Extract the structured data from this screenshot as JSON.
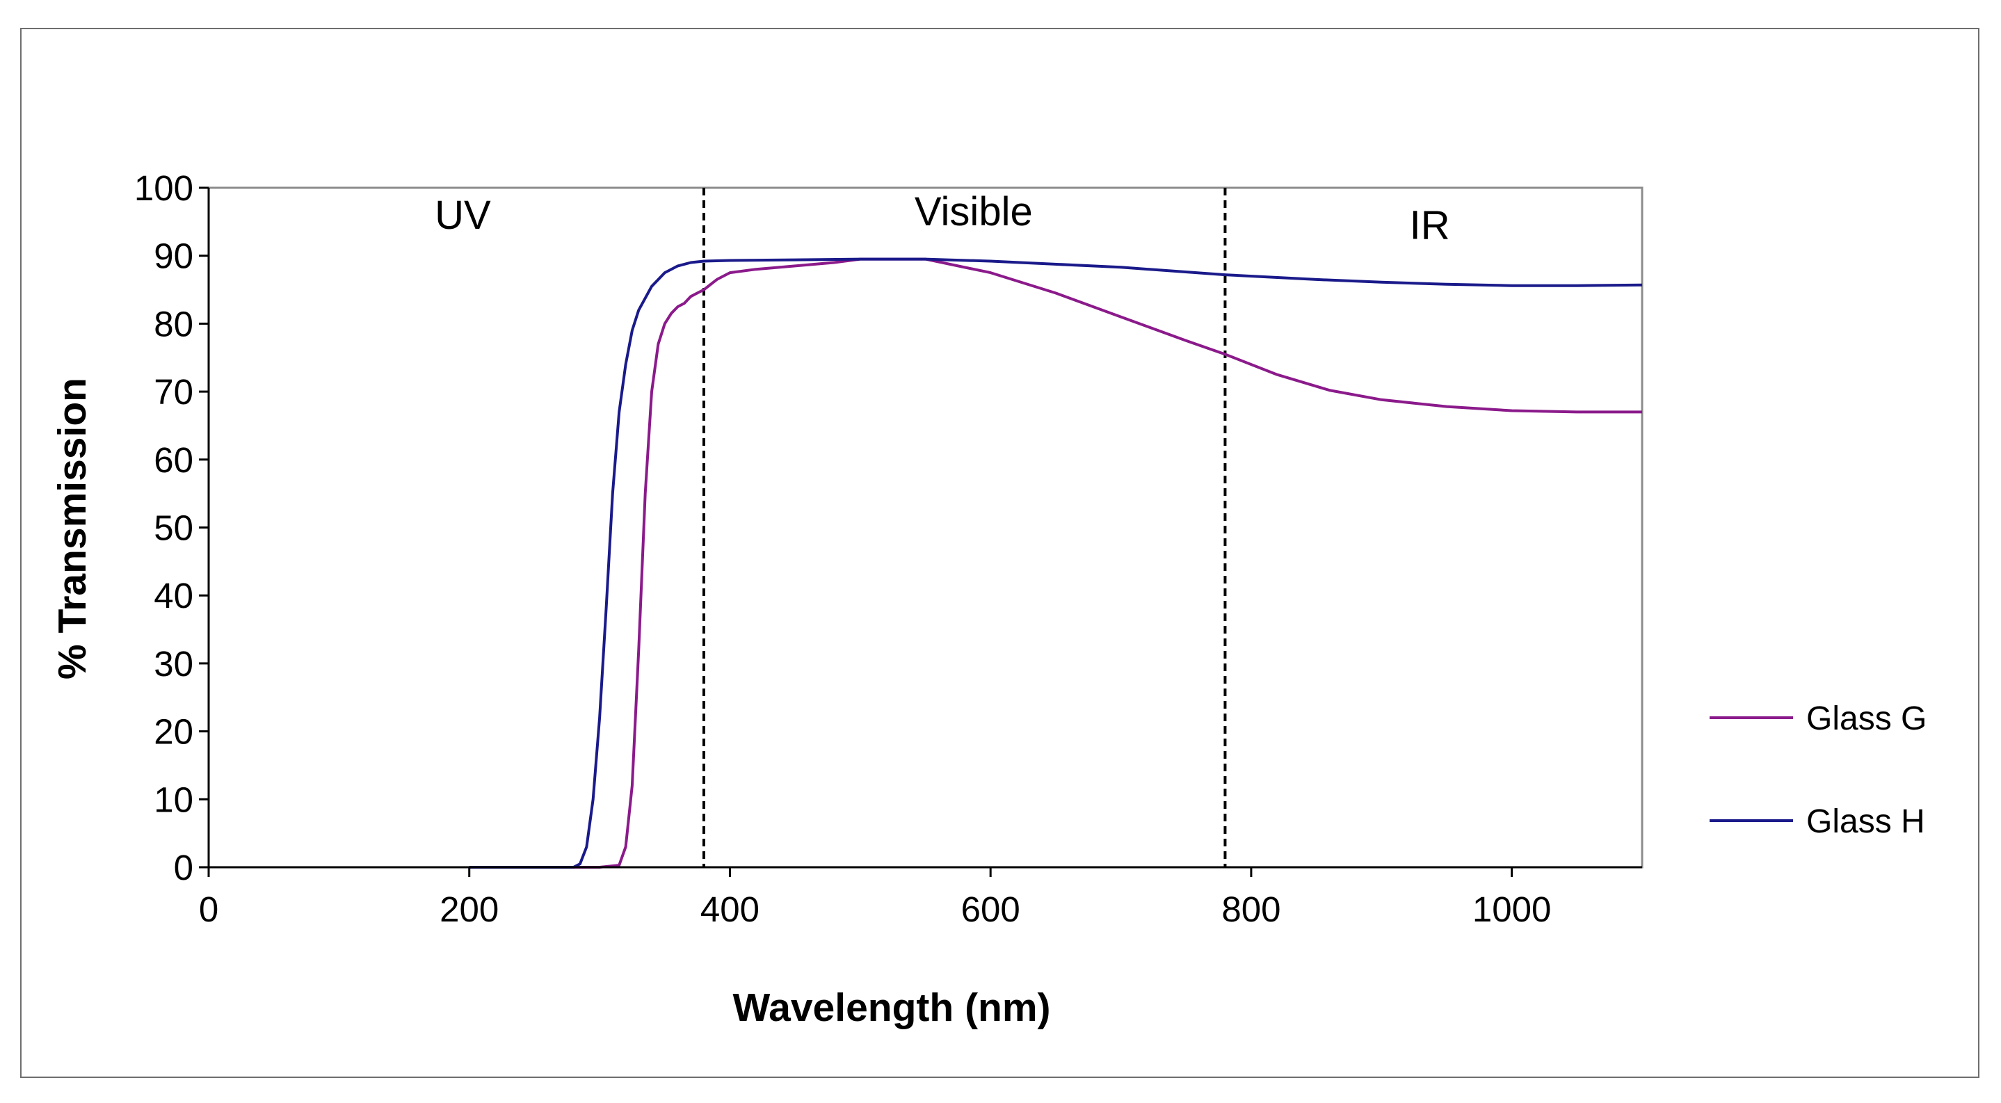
{
  "chart_data": {
    "type": "line",
    "title": "",
    "xlabel": "Wavelength (nm)",
    "ylabel": "% Transmission",
    "xlim": [
      0,
      1100
    ],
    "ylim": [
      0,
      100
    ],
    "x_ticks": [
      0,
      200,
      400,
      600,
      800,
      1000
    ],
    "y_ticks": [
      0,
      10,
      20,
      30,
      40,
      50,
      60,
      70,
      80,
      90,
      100
    ],
    "grid": false,
    "legend": "right",
    "regions": [
      {
        "label": "UV",
        "x_center": 195,
        "y": 96
      },
      {
        "label": "Visible",
        "x_center": 587,
        "y": 96.5
      },
      {
        "label": "IR",
        "x_center": 937,
        "y": 94.5
      }
    ],
    "boundaries": [
      380,
      780
    ],
    "series": [
      {
        "name": "Glass G",
        "color": "#8b1a8b",
        "x": [
          200,
          300,
          315,
          320,
          325,
          330,
          335,
          340,
          345,
          350,
          355,
          360,
          365,
          370,
          375,
          380,
          390,
          400,
          420,
          450,
          480,
          500,
          550,
          600,
          650,
          700,
          750,
          780,
          820,
          860,
          900,
          950,
          1000,
          1050,
          1100
        ],
        "y": [
          0,
          0,
          0.3,
          3,
          12,
          32,
          55,
          70,
          77,
          80,
          81.5,
          82.5,
          83,
          84,
          84.5,
          85,
          86.5,
          87.5,
          88,
          88.5,
          89,
          89.5,
          89.5,
          87.5,
          84.5,
          81,
          77.5,
          75.5,
          72.5,
          70.2,
          68.8,
          67.8,
          67.2,
          67.0,
          67.0
        ]
      },
      {
        "name": "Glass H",
        "color": "#1a1a8b",
        "x": [
          200,
          280,
          285,
          290,
          295,
          300,
          305,
          310,
          315,
          320,
          325,
          330,
          340,
          350,
          360,
          370,
          380,
          400,
          450,
          500,
          550,
          600,
          700,
          780,
          850,
          900,
          950,
          1000,
          1050,
          1100
        ],
        "y": [
          0,
          0,
          0.5,
          3,
          10,
          22,
          38,
          55,
          67,
          74,
          79,
          82,
          85.5,
          87.5,
          88.5,
          89,
          89.2,
          89.3,
          89.4,
          89.5,
          89.5,
          89.2,
          88.3,
          87.2,
          86.5,
          86.1,
          85.8,
          85.6,
          85.6,
          85.7
        ]
      }
    ]
  }
}
